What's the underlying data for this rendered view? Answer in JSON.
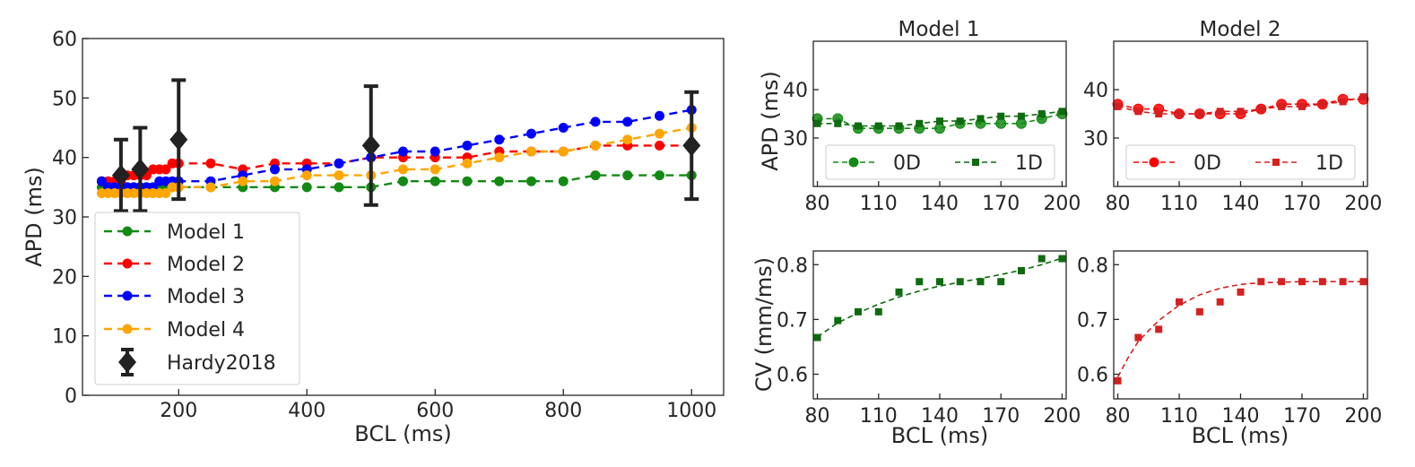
{
  "colors": {
    "model1": "#138a13",
    "model2": "#ff0000",
    "model3": "#0000ff",
    "model4": "#ffa500",
    "hardy": "#222222",
    "green_dark": "#0f6b0f",
    "red_dark": "#d62020"
  },
  "chart_data": [
    {
      "id": "main",
      "type": "line",
      "title": "",
      "xlabel": "BCL (ms)",
      "ylabel": "APD (ms)",
      "xlim": [
        50,
        1050
      ],
      "ylim": [
        0,
        60
      ],
      "xticks": [
        200,
        400,
        600,
        800,
        1000
      ],
      "yticks": [
        0,
        10,
        20,
        30,
        40,
        50,
        60
      ],
      "legend_position": "lower-left",
      "series": [
        {
          "name": "Model 1",
          "color_key": "model1",
          "x": [
            80,
            90,
            100,
            110,
            120,
            130,
            140,
            150,
            160,
            170,
            180,
            190,
            200,
            250,
            300,
            350,
            400,
            450,
            500,
            550,
            600,
            650,
            700,
            750,
            800,
            850,
            900,
            950,
            1000
          ],
          "y": [
            35,
            35,
            35,
            35,
            35,
            35,
            35,
            35,
            35,
            35,
            35,
            35,
            35,
            35,
            35,
            35,
            35,
            35,
            35,
            36,
            36,
            36,
            36,
            36,
            36,
            37,
            37,
            37,
            37
          ]
        },
        {
          "name": "Model 2",
          "color_key": "model2",
          "x": [
            80,
            90,
            100,
            110,
            120,
            130,
            140,
            150,
            160,
            170,
            180,
            190,
            200,
            250,
            300,
            350,
            400,
            450,
            500,
            550,
            600,
            650,
            700,
            750,
            800,
            850,
            900,
            950,
            1000
          ],
          "y": [
            36,
            36,
            36,
            36,
            37,
            37,
            37,
            37,
            38,
            38,
            38,
            39,
            39,
            39,
            38,
            39,
            39,
            39,
            40,
            40,
            40,
            40,
            41,
            41,
            41,
            42,
            42,
            42,
            42
          ]
        },
        {
          "name": "Model 3",
          "color_key": "model3",
          "x": [
            80,
            90,
            100,
            110,
            120,
            130,
            140,
            150,
            160,
            170,
            180,
            190,
            200,
            250,
            300,
            350,
            400,
            450,
            500,
            550,
            600,
            650,
            700,
            750,
            800,
            850,
            900,
            950,
            1000
          ],
          "y": [
            36,
            35,
            35,
            35,
            35,
            35,
            35,
            35,
            35,
            36,
            36,
            36,
            36,
            36,
            37,
            38,
            38,
            39,
            40,
            41,
            41,
            42,
            43,
            44,
            45,
            46,
            46,
            47,
            48
          ]
        },
        {
          "name": "Model 4",
          "color_key": "model4",
          "x": [
            80,
            90,
            100,
            110,
            120,
            130,
            140,
            150,
            160,
            170,
            180,
            190,
            200,
            250,
            300,
            350,
            400,
            450,
            500,
            550,
            600,
            650,
            700,
            750,
            800,
            850,
            900,
            950,
            1000
          ],
          "y": [
            34,
            34,
            34,
            34,
            34,
            34,
            34,
            34,
            34,
            34,
            34,
            35,
            35,
            35,
            36,
            36,
            37,
            37,
            37,
            38,
            38,
            39,
            40,
            41,
            41,
            42,
            43,
            44,
            45
          ]
        }
      ],
      "errorbar_series": {
        "name": "Hardy2018",
        "color_key": "hardy",
        "x": [
          110,
          140,
          200,
          500,
          1000
        ],
        "y": [
          37,
          38,
          43,
          42,
          42
        ],
        "lower": [
          31,
          31,
          33,
          32,
          33
        ],
        "upper": [
          43,
          45,
          53,
          52,
          51
        ]
      }
    },
    {
      "id": "apd_model1",
      "type": "line",
      "title": "Model 1",
      "xlabel": "",
      "ylabel": "APD (ms)",
      "xlim": [
        78,
        202
      ],
      "ylim": [
        20,
        50
      ],
      "xticks": [
        80,
        110,
        140,
        170,
        200
      ],
      "yticks": [
        30,
        40
      ],
      "legend_position": "bottom",
      "series": [
        {
          "name": "0D",
          "color_key": "model1",
          "marker": "circle",
          "x": [
            80,
            90,
            100,
            110,
            120,
            130,
            140,
            150,
            160,
            170,
            180,
            190,
            200
          ],
          "y": [
            34,
            34,
            32,
            32,
            32,
            32,
            32,
            33,
            33,
            33,
            33,
            34,
            35
          ]
        },
        {
          "name": "1D",
          "color_key": "green_dark",
          "marker": "square",
          "x": [
            80,
            90,
            100,
            110,
            120,
            130,
            140,
            150,
            160,
            170,
            180,
            190,
            200
          ],
          "y": [
            33,
            33,
            32.5,
            32.5,
            32.5,
            33,
            33.5,
            33.5,
            34,
            34.5,
            34.5,
            35,
            35.5
          ]
        }
      ]
    },
    {
      "id": "apd_model2",
      "type": "line",
      "title": "Model 2",
      "xlabel": "",
      "ylabel": "",
      "xlim": [
        78,
        202
      ],
      "ylim": [
        20,
        50
      ],
      "xticks": [
        80,
        110,
        140,
        170,
        200
      ],
      "yticks": [
        30,
        40
      ],
      "legend_position": "bottom",
      "series": [
        {
          "name": "0D",
          "color_key": "model2",
          "marker": "circle",
          "x": [
            80,
            90,
            100,
            110,
            120,
            130,
            140,
            150,
            160,
            170,
            180,
            190,
            200
          ],
          "y": [
            37,
            36,
            36,
            35,
            35,
            35,
            35,
            36,
            37,
            37,
            37,
            38,
            38
          ]
        },
        {
          "name": "1D",
          "color_key": "red_dark",
          "marker": "square",
          "x": [
            80,
            90,
            100,
            110,
            120,
            130,
            140,
            150,
            160,
            170,
            180,
            190,
            200
          ],
          "y": [
            36.5,
            35.5,
            35,
            35,
            35,
            35.5,
            35.5,
            36,
            36.5,
            36.5,
            37,
            37.5,
            38.5
          ]
        }
      ]
    },
    {
      "id": "cv_model1",
      "type": "scatter",
      "title": "",
      "xlabel": "BCL (ms)",
      "ylabel": "CV (mm/ms)",
      "xlim": [
        78,
        202
      ],
      "ylim": [
        0.555,
        0.825
      ],
      "xticks": [
        80,
        110,
        140,
        170,
        200
      ],
      "yticks": [
        0.6,
        0.7,
        0.8
      ],
      "series": [
        {
          "name": "1D",
          "color_key": "green_dark",
          "marker": "square",
          "x": [
            80,
            90,
            100,
            110,
            120,
            130,
            140,
            150,
            160,
            170,
            180,
            190,
            200
          ],
          "y": [
            0.667,
            0.698,
            0.714,
            0.714,
            0.75,
            0.769,
            0.769,
            0.769,
            0.769,
            0.769,
            0.789,
            0.811,
            0.811
          ]
        },
        {
          "name": "fit",
          "color_key": "green_dark",
          "marker": "none",
          "x": [
            80,
            90,
            100,
            110,
            120,
            130,
            140,
            150,
            160,
            170,
            180,
            190,
            200
          ],
          "y": [
            0.668,
            0.694,
            0.712,
            0.728,
            0.741,
            0.752,
            0.761,
            0.768,
            0.775,
            0.782,
            0.79,
            0.8,
            0.812
          ]
        }
      ]
    },
    {
      "id": "cv_model2",
      "type": "scatter",
      "title": "",
      "xlabel": "BCL (ms)",
      "ylabel": "",
      "xlim": [
        78,
        202
      ],
      "ylim": [
        0.555,
        0.825
      ],
      "xticks": [
        80,
        110,
        140,
        170,
        200
      ],
      "yticks": [
        0.6,
        0.7,
        0.8
      ],
      "series": [
        {
          "name": "1D",
          "color_key": "red_dark",
          "marker": "square",
          "x": [
            80,
            90,
            100,
            110,
            120,
            130,
            140,
            150,
            160,
            170,
            180,
            190,
            200
          ],
          "y": [
            0.588,
            0.667,
            0.682,
            0.732,
            0.714,
            0.732,
            0.75,
            0.769,
            0.769,
            0.769,
            0.769,
            0.769,
            0.769
          ]
        },
        {
          "name": "fit",
          "color_key": "red_dark",
          "marker": "none",
          "x": [
            80,
            85,
            90,
            100,
            110,
            120,
            130,
            140,
            150,
            160,
            170,
            180,
            190,
            200
          ],
          "y": [
            0.595,
            0.63,
            0.66,
            0.698,
            0.726,
            0.745,
            0.757,
            0.764,
            0.767,
            0.768,
            0.769,
            0.769,
            0.769,
            0.769
          ]
        }
      ]
    }
  ]
}
